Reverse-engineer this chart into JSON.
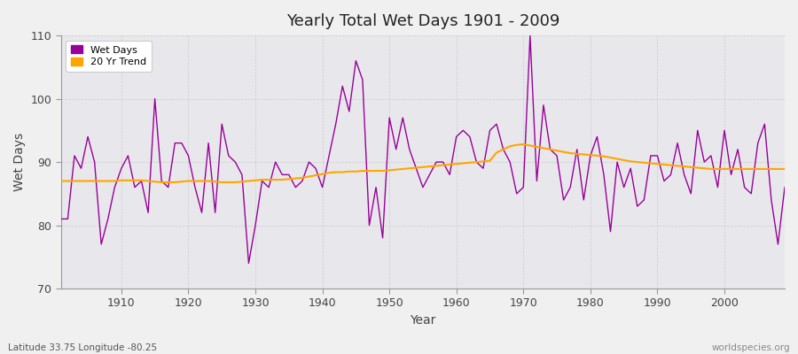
{
  "title": "Yearly Total Wet Days 1901 - 2009",
  "xlabel": "Year",
  "ylabel": "Wet Days",
  "footer_left": "Latitude 33.75 Longitude -80.25",
  "footer_right": "worldspecies.org",
  "ylim": [
    70,
    110
  ],
  "xlim": [
    1901,
    2009
  ],
  "yticks": [
    70,
    80,
    90,
    100,
    110
  ],
  "xticks": [
    1910,
    1920,
    1930,
    1940,
    1950,
    1960,
    1970,
    1980,
    1990,
    2000
  ],
  "wet_days_color": "#990099",
  "trend_color": "#FFA500",
  "plot_bg_color": "#E8E8EC",
  "fig_bg_color": "#F0F0F0",
  "legend_wet_days": "Wet Days",
  "legend_trend": "20 Yr Trend",
  "years": [
    1901,
    1902,
    1903,
    1904,
    1905,
    1906,
    1907,
    1908,
    1909,
    1910,
    1911,
    1912,
    1913,
    1914,
    1915,
    1916,
    1917,
    1918,
    1919,
    1920,
    1921,
    1922,
    1923,
    1924,
    1925,
    1926,
    1927,
    1928,
    1929,
    1930,
    1931,
    1932,
    1933,
    1934,
    1935,
    1936,
    1937,
    1938,
    1939,
    1940,
    1941,
    1942,
    1943,
    1944,
    1945,
    1946,
    1947,
    1948,
    1949,
    1950,
    1951,
    1952,
    1953,
    1954,
    1955,
    1956,
    1957,
    1958,
    1959,
    1960,
    1961,
    1962,
    1963,
    1964,
    1965,
    1966,
    1967,
    1968,
    1969,
    1970,
    1971,
    1972,
    1973,
    1974,
    1975,
    1976,
    1977,
    1978,
    1979,
    1980,
    1981,
    1982,
    1983,
    1984,
    1985,
    1986,
    1987,
    1988,
    1989,
    1990,
    1991,
    1992,
    1993,
    1994,
    1995,
    1996,
    1997,
    1998,
    1999,
    2000,
    2001,
    2002,
    2003,
    2004,
    2005,
    2006,
    2007,
    2008,
    2009
  ],
  "wet_days": [
    81,
    81,
    91,
    89,
    94,
    90,
    77,
    81,
    86,
    89,
    91,
    86,
    87,
    82,
    100,
    87,
    86,
    93,
    93,
    91,
    86,
    82,
    93,
    82,
    96,
    91,
    90,
    88,
    74,
    80,
    87,
    86,
    90,
    88,
    88,
    86,
    87,
    90,
    89,
    86,
    91,
    96,
    102,
    98,
    106,
    103,
    80,
    86,
    78,
    97,
    92,
    97,
    92,
    89,
    86,
    88,
    90,
    90,
    88,
    94,
    95,
    94,
    90,
    89,
    95,
    96,
    92,
    90,
    85,
    86,
    110,
    87,
    99,
    92,
    91,
    84,
    86,
    92,
    84,
    91,
    94,
    88,
    79,
    90,
    86,
    89,
    83,
    84,
    91,
    91,
    87,
    88,
    93,
    88,
    85,
    95,
    90,
    91,
    86,
    95,
    88,
    92,
    86,
    85,
    93,
    96,
    84,
    77,
    86
  ],
  "trend": [
    87.0,
    87.0,
    87.0,
    87.0,
    87.0,
    87.0,
    87.0,
    87.0,
    87.0,
    87.1,
    87.1,
    87.1,
    87.1,
    87.0,
    86.9,
    86.8,
    86.8,
    86.8,
    86.9,
    87.0,
    87.0,
    87.0,
    87.0,
    86.9,
    86.8,
    86.8,
    86.8,
    86.9,
    87.0,
    87.1,
    87.2,
    87.2,
    87.2,
    87.2,
    87.3,
    87.4,
    87.5,
    87.7,
    87.9,
    88.1,
    88.3,
    88.4,
    88.4,
    88.5,
    88.5,
    88.6,
    88.6,
    88.6,
    88.6,
    88.7,
    88.8,
    88.9,
    89.0,
    89.1,
    89.2,
    89.3,
    89.4,
    89.5,
    89.6,
    89.7,
    89.8,
    89.9,
    90.0,
    90.1,
    90.2,
    91.5,
    92.0,
    92.5,
    92.7,
    92.8,
    92.6,
    92.4,
    92.2,
    92.0,
    91.8,
    91.6,
    91.4,
    91.3,
    91.2,
    91.1,
    91.0,
    90.9,
    90.7,
    90.5,
    90.3,
    90.1,
    90.0,
    89.9,
    89.8,
    89.7,
    89.6,
    89.5,
    89.4,
    89.3,
    89.2,
    89.1,
    89.0,
    88.9,
    88.9,
    88.9,
    88.9,
    88.9,
    88.9,
    88.9,
    88.9,
    88.9,
    88.9,
    88.9,
    88.9
  ]
}
